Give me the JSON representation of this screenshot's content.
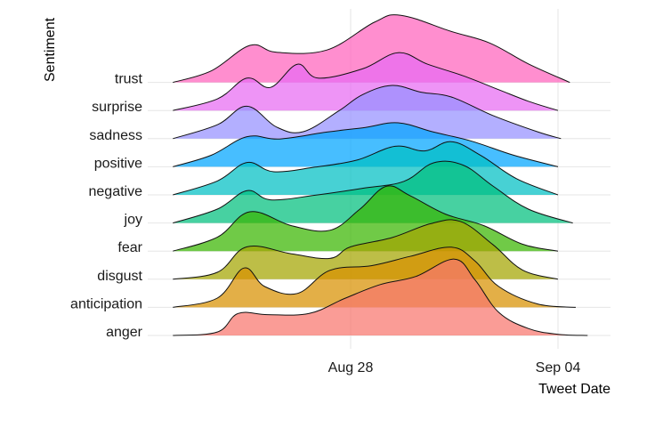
{
  "chart_data": {
    "type": "ridgeline",
    "title": "",
    "xlabel": "Tweet Date",
    "ylabel": "Sentiment",
    "x_ticks": [
      "Aug 28",
      "Sep 04"
    ],
    "x_tick_dates": [
      "2018-08-28",
      "2018-09-04"
    ],
    "x_range": [
      "2018-08-22",
      "2018-09-06"
    ],
    "grid": true,
    "legend": "none",
    "categories": [
      "anger",
      "anticipation",
      "disgust",
      "fear",
      "joy",
      "negative",
      "positive",
      "sadness",
      "surprise",
      "trust"
    ],
    "series": [
      {
        "name": "anger",
        "color": "#F8766D",
        "start": "2018-08-22",
        "end": "2018-09-06",
        "density": [
          [
            0,
            0
          ],
          [
            1.5,
            0.15
          ],
          [
            2.2,
            0.95
          ],
          [
            3.2,
            0.9
          ],
          [
            4.6,
            0.95
          ],
          [
            5.8,
            1.6
          ],
          [
            7,
            2.2
          ],
          [
            8.2,
            2.55
          ],
          [
            9.5,
            3.3
          ],
          [
            10.2,
            2.4
          ],
          [
            11,
            1.0
          ],
          [
            12,
            0.3
          ],
          [
            13,
            0.05
          ],
          [
            14,
            0
          ]
        ]
      },
      {
        "name": "anticipation",
        "color": "#D89000",
        "start": "2018-08-22",
        "end": "2018-09-06",
        "density": [
          [
            0,
            0
          ],
          [
            1.5,
            0.4
          ],
          [
            2.4,
            1.7
          ],
          [
            3.1,
            0.9
          ],
          [
            4.2,
            0.6
          ],
          [
            5.3,
            1.6
          ],
          [
            6.7,
            1.8
          ],
          [
            8,
            2.2
          ],
          [
            9.4,
            2.6
          ],
          [
            10.2,
            2.0
          ],
          [
            11,
            0.9
          ],
          [
            12.3,
            0.15
          ],
          [
            13.6,
            0
          ]
        ]
      },
      {
        "name": "disgust",
        "color": "#A3A500",
        "start": "2018-08-22",
        "end": "2018-09-06",
        "density": [
          [
            0,
            0
          ],
          [
            1.5,
            0.3
          ],
          [
            2.5,
            1.4
          ],
          [
            4,
            1.1
          ],
          [
            5.3,
            0.9
          ],
          [
            6,
            1.4
          ],
          [
            7.4,
            1.8
          ],
          [
            8.7,
            2.4
          ],
          [
            9.7,
            2.5
          ],
          [
            10.8,
            1.5
          ],
          [
            11.8,
            0.4
          ],
          [
            13,
            0
          ]
        ]
      },
      {
        "name": "fear",
        "color": "#39B600",
        "start": "2018-08-22",
        "end": "2018-09-06",
        "density": [
          [
            0,
            0
          ],
          [
            1.5,
            0.6
          ],
          [
            2.6,
            1.7
          ],
          [
            4,
            1.1
          ],
          [
            5.3,
            0.9
          ],
          [
            6.3,
            1.8
          ],
          [
            7.2,
            2.8
          ],
          [
            8,
            2.4
          ],
          [
            9.2,
            1.6
          ],
          [
            10.5,
            1.1
          ],
          [
            11.8,
            0.3
          ],
          [
            13,
            0
          ]
        ]
      },
      {
        "name": "joy",
        "color": "#00BF7D",
        "start": "2018-08-22",
        "end": "2018-09-06",
        "density": [
          [
            0,
            0
          ],
          [
            1.5,
            0.6
          ],
          [
            2.5,
            1.4
          ],
          [
            3.3,
            1.0
          ],
          [
            4.8,
            1.2
          ],
          [
            6.4,
            1.5
          ],
          [
            7.8,
            1.8
          ],
          [
            8.8,
            2.6
          ],
          [
            9.8,
            2.5
          ],
          [
            10.8,
            1.6
          ],
          [
            12,
            0.6
          ],
          [
            13.5,
            0
          ]
        ]
      },
      {
        "name": "negative",
        "color": "#00BFC4",
        "start": "2018-08-22",
        "end": "2018-09-06",
        "density": [
          [
            0,
            0
          ],
          [
            1.5,
            0.6
          ],
          [
            2.5,
            1.4
          ],
          [
            3.4,
            1.0
          ],
          [
            4.8,
            1.2
          ],
          [
            6.2,
            1.5
          ],
          [
            7.5,
            2.1
          ],
          [
            8.5,
            1.9
          ],
          [
            9.4,
            2.3
          ],
          [
            10.4,
            1.7
          ],
          [
            11.6,
            0.7
          ],
          [
            13,
            0
          ]
        ]
      },
      {
        "name": "positive",
        "color": "#00A5FF",
        "start": "2018-08-22",
        "end": "2018-09-06",
        "density": [
          [
            0,
            0
          ],
          [
            1.3,
            0.5
          ],
          [
            2.5,
            1.3
          ],
          [
            3.6,
            1.2
          ],
          [
            5.2,
            1.5
          ],
          [
            6.5,
            1.7
          ],
          [
            7.6,
            1.9
          ],
          [
            8.8,
            1.5
          ],
          [
            10.1,
            1.1
          ],
          [
            11.5,
            0.5
          ],
          [
            13,
            0
          ]
        ]
      },
      {
        "name": "sadness",
        "color": "#9590FF",
        "start": "2018-08-22",
        "end": "2018-09-06",
        "density": [
          [
            0,
            0
          ],
          [
            1.5,
            0.6
          ],
          [
            2.5,
            1.4
          ],
          [
            3.5,
            0.5
          ],
          [
            4.4,
            0.3
          ],
          [
            5.6,
            1.2
          ],
          [
            6.4,
            1.9
          ],
          [
            7.4,
            2.3
          ],
          [
            8.4,
            2.0
          ],
          [
            9.4,
            1.8
          ],
          [
            10.8,
            1.0
          ],
          [
            12.3,
            0.3
          ],
          [
            13.1,
            0
          ]
        ]
      },
      {
        "name": "surprise",
        "color": "#E76BF3",
        "start": "2018-08-22",
        "end": "2018-09-06",
        "density": [
          [
            0,
            0
          ],
          [
            1.5,
            0.5
          ],
          [
            2.5,
            1.4
          ],
          [
            3.3,
            1.0
          ],
          [
            4.2,
            2.0
          ],
          [
            4.9,
            1.4
          ],
          [
            6.4,
            1.8
          ],
          [
            7.6,
            2.5
          ],
          [
            8.6,
            2.0
          ],
          [
            9.8,
            1.5
          ],
          [
            11,
            0.9
          ],
          [
            12,
            0.4
          ],
          [
            13,
            0
          ]
        ]
      },
      {
        "name": "trust",
        "color": "#FF62BC",
        "start": "2018-08-22",
        "end": "2018-09-06",
        "density": [
          [
            0,
            0
          ],
          [
            1.3,
            0.5
          ],
          [
            2.6,
            1.6
          ],
          [
            3.5,
            1.3
          ],
          [
            5.2,
            1.4
          ],
          [
            6.8,
            2.6
          ],
          [
            7.7,
            2.9
          ],
          [
            9.4,
            2.2
          ],
          [
            10.7,
            1.7
          ],
          [
            12,
            0.8
          ],
          [
            13.4,
            0
          ]
        ]
      }
    ]
  }
}
